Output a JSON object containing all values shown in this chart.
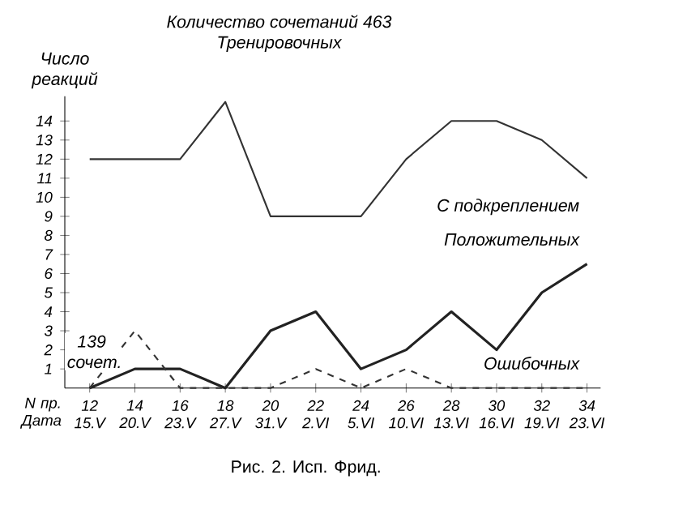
{
  "chart_data": {
    "type": "line",
    "title": "Количество сочетаний 463",
    "subtitle": "Тренировочных",
    "xlabel": "N пр. Дата",
    "ylabel": "Число реакций",
    "categories": [
      "12 15.V",
      "14 20.V",
      "16 23.V",
      "18 27.V",
      "20 31.V",
      "22 2.VI",
      "24 5.VI",
      "26 10.VI",
      "28 13.VI",
      "30 16.VI",
      "32 19.VI",
      "34 23.VI"
    ],
    "series": [
      {
        "name": "С подкреплением",
        "color": "#333333",
        "line_style": "solid",
        "values": [
          12,
          12,
          12,
          15,
          9,
          9,
          9,
          12,
          14,
          14,
          13,
          11
        ]
      },
      {
        "name": "Положительных",
        "color": "#222222",
        "line_style": "solid",
        "values": [
          0,
          1,
          1,
          0,
          3,
          4,
          1,
          2,
          4,
          2,
          5,
          6.5
        ]
      },
      {
        "name": "Ошибочных",
        "color": "#333333",
        "line_style": "dashed",
        "values": [
          0,
          3,
          0,
          0,
          0,
          1,
          0,
          1,
          0,
          0,
          0,
          0
        ]
      }
    ],
    "ylim": [
      0,
      15.3
    ],
    "yticks": [
      1,
      2,
      3,
      4,
      5,
      6,
      7,
      8,
      9,
      10,
      11,
      12,
      13,
      14
    ],
    "grid": false,
    "legend": false,
    "marker": "none",
    "annotations": [
      "139 сочет.",
      "Рис. 2. Исп. Фрид."
    ]
  }
}
